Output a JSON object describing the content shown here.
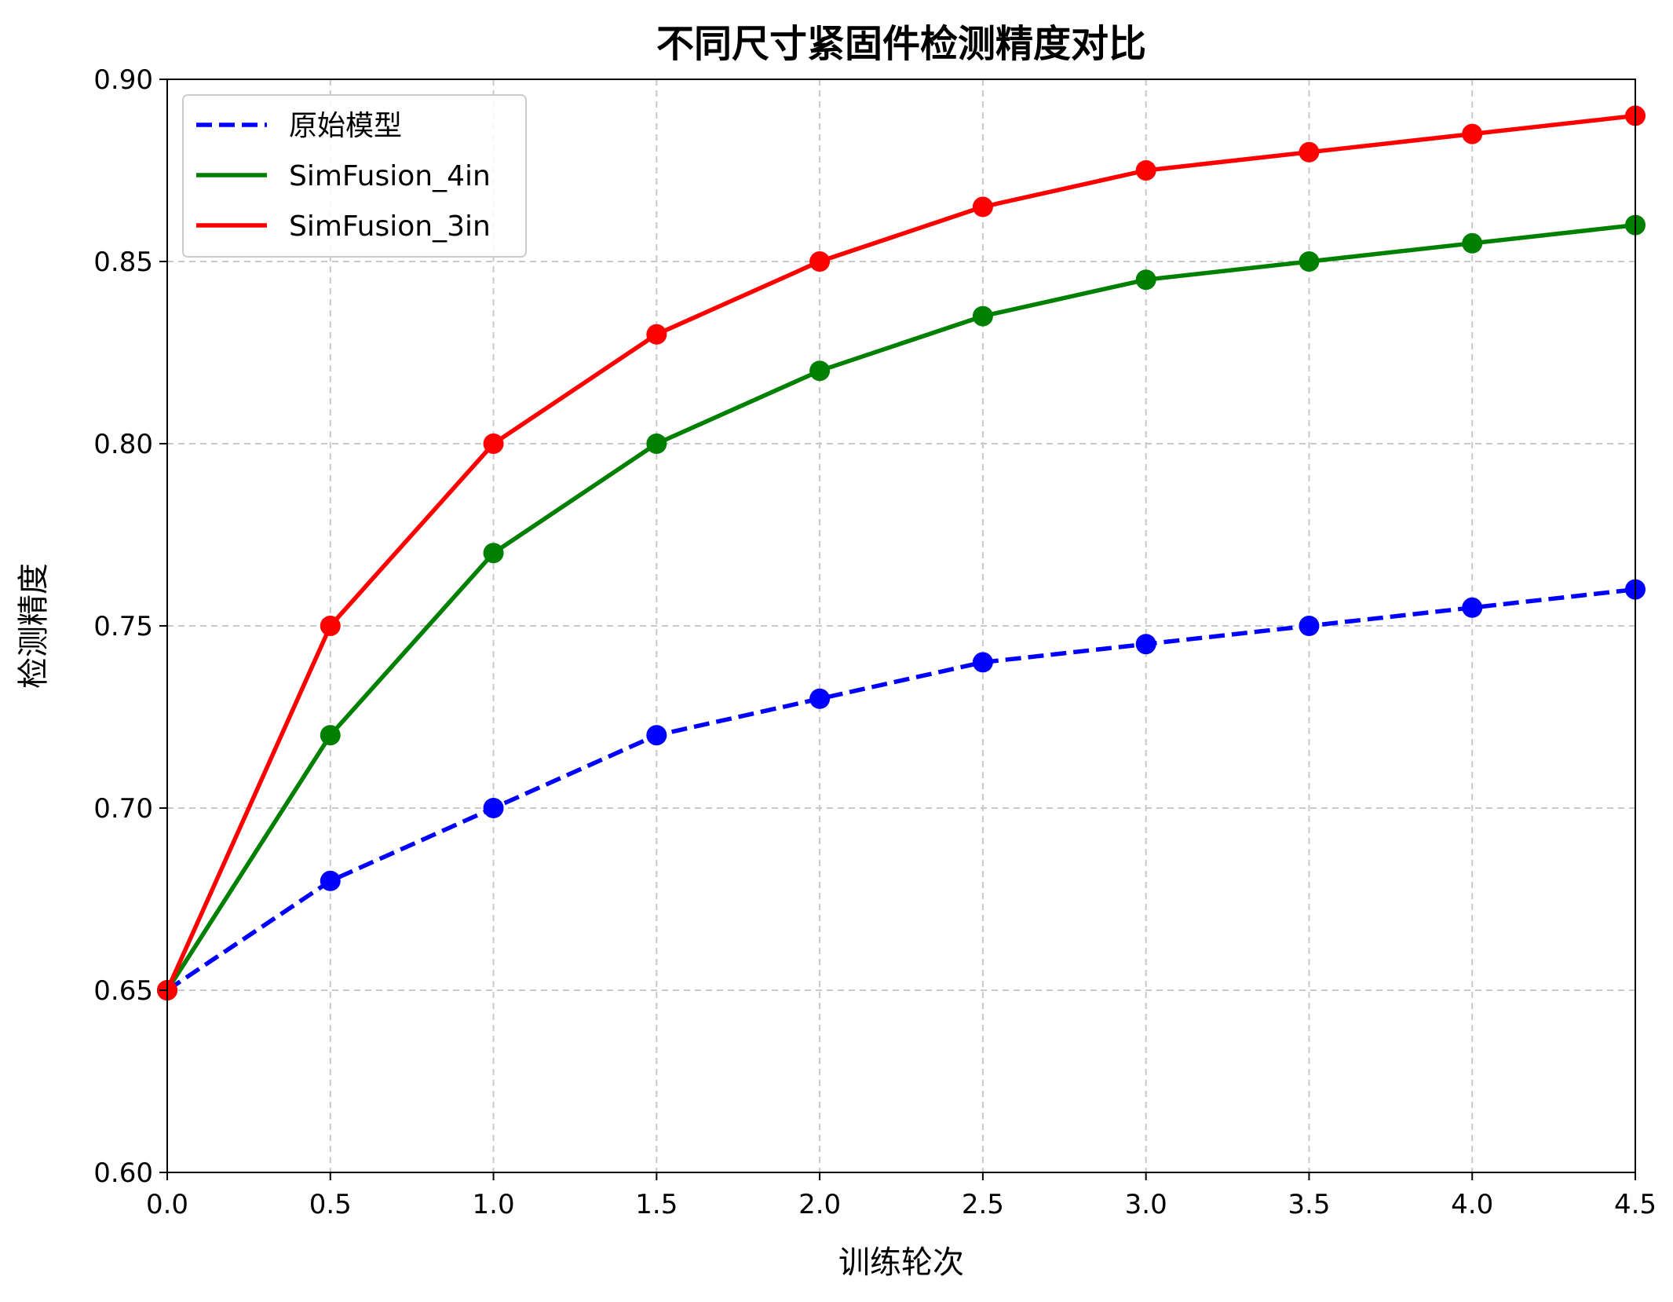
{
  "chart_data": {
    "type": "line",
    "title": "不同尺寸紧固件检测精度对比",
    "xlabel": "训练轮次",
    "ylabel": "检测精度",
    "xlim": [
      0.0,
      4.5
    ],
    "ylim": [
      0.6,
      0.9
    ],
    "xticks": [
      "0.0",
      "0.5",
      "1.0",
      "1.5",
      "2.0",
      "2.5",
      "3.0",
      "3.5",
      "4.0",
      "4.5"
    ],
    "yticks": [
      "0.60",
      "0.65",
      "0.70",
      "0.75",
      "0.80",
      "0.85",
      "0.90"
    ],
    "grid": true,
    "legend_position": "top-left",
    "x": [
      0.0,
      0.5,
      1.0,
      1.5,
      2.0,
      2.5,
      3.0,
      3.5,
      4.0,
      4.5
    ],
    "series": [
      {
        "name": "原始模型",
        "color": "#0000ff",
        "style": "dashed",
        "values": [
          0.65,
          0.68,
          0.7,
          0.72,
          0.73,
          0.74,
          0.745,
          0.75,
          0.755,
          0.76
        ]
      },
      {
        "name": "SimFusion_4in",
        "color": "#008000",
        "style": "solid",
        "values": [
          0.65,
          0.72,
          0.77,
          0.8,
          0.82,
          0.835,
          0.845,
          0.85,
          0.855,
          0.86
        ]
      },
      {
        "name": "SimFusion_3in",
        "color": "#ff0000",
        "style": "solid",
        "values": [
          0.65,
          0.75,
          0.8,
          0.83,
          0.85,
          0.865,
          0.875,
          0.88,
          0.885,
          0.89
        ]
      }
    ]
  }
}
